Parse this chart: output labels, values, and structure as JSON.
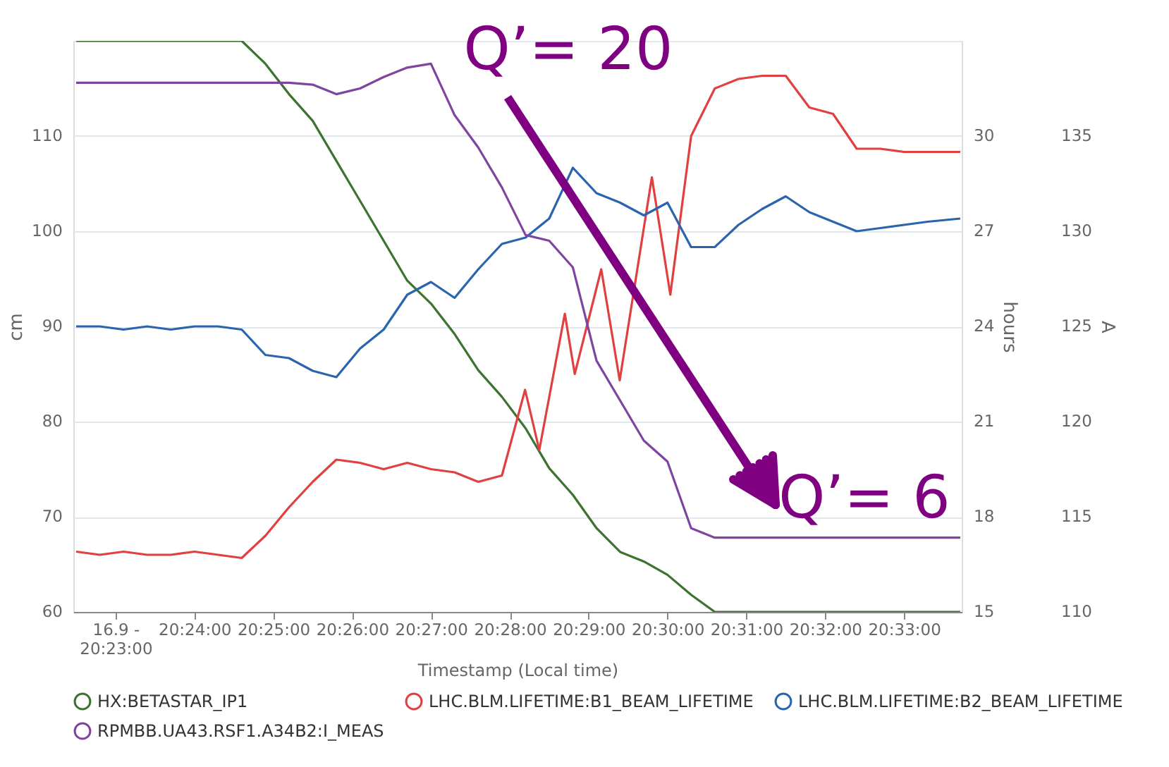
{
  "chart_data": {
    "type": "line",
    "xlabel": "Timestamp (Local time)",
    "ylabel": "cm",
    "y2label": "hours",
    "y3label": "A",
    "x": [
      20.375,
      20.38,
      20.385,
      20.39,
      20.395,
      20.4,
      20.405,
      20.41,
      20.415,
      20.42,
      20.425,
      20.43,
      20.435,
      20.44,
      20.445,
      20.45,
      20.455,
      20.46,
      20.465,
      20.47,
      20.475,
      20.48,
      20.485,
      20.49,
      20.495,
      20.5,
      20.505,
      20.51,
      20.515,
      20.52,
      20.525,
      20.53,
      20.535,
      20.54,
      20.545,
      20.55,
      20.555,
      20.5619
    ],
    "xlim": [
      20.3744,
      20.5622
    ],
    "xticks": [
      {
        "value": 20.383333,
        "label": "16.9 - 20:23:00"
      },
      {
        "value": 20.4,
        "label": "20:24:00"
      },
      {
        "value": 20.416667,
        "label": "20:25:00"
      },
      {
        "value": 20.433333,
        "label": "20:26:00"
      },
      {
        "value": 20.45,
        "label": "20:27:00"
      },
      {
        "value": 20.466667,
        "label": "20:28:00"
      },
      {
        "value": 20.483333,
        "label": "20:29:00"
      },
      {
        "value": 20.5,
        "label": "20:30:00"
      },
      {
        "value": 20.516667,
        "label": "20:31:00"
      },
      {
        "value": 20.533333,
        "label": "20:32:00"
      },
      {
        "value": 20.55,
        "label": "20:33:00"
      }
    ],
    "ylim": [
      60,
      120
    ],
    "yticks": [
      60,
      70,
      80,
      90,
      100,
      110,
      {
        "value": 120,
        "label": null
      }
    ],
    "y2lim": [
      15,
      33
    ],
    "y2ticks": [
      15,
      18,
      21,
      24,
      27,
      30
    ],
    "y3lim": [
      110,
      140
    ],
    "y3ticks": [
      110,
      115,
      120,
      125,
      130,
      135
    ],
    "grid": "y",
    "legend": "bottom",
    "annotations": [
      "Q’= 20",
      "Q’= 6"
    ],
    "series": [
      {
        "name": "HX:BETASTAR_IP1",
        "color": "#3d7330",
        "values": [
          120,
          120,
          120,
          120,
          120,
          120,
          120,
          120,
          117.6,
          114.4,
          111.6,
          107.4,
          103.2,
          99,
          94.8,
          92.4,
          89.2,
          85.4,
          82.6,
          79.3,
          75.1,
          72.3,
          68.8,
          66.3,
          65.3,
          63.9,
          61.8,
          60,
          60,
          60,
          60,
          60,
          60,
          60,
          60,
          60,
          60,
          60
        ]
      },
      {
        "name": "LHC.BLM.LIFETIME:B1_BEAM_LIFETIME",
        "color": "#e0403f",
        "axis": "y2",
        "x": [
          20.375,
          20.38,
          20.385,
          20.39,
          20.395,
          20.4,
          20.405,
          20.41,
          20.415,
          20.42,
          20.425,
          20.43,
          20.435,
          20.44,
          20.445,
          20.45,
          20.455,
          20.46,
          20.465,
          20.4699,
          20.4729,
          20.4783,
          20.4804,
          20.486,
          20.4899,
          20.4967,
          20.5006,
          20.505,
          20.51,
          20.515,
          20.52,
          20.525,
          20.53,
          20.535,
          20.54,
          20.545,
          20.55,
          20.555,
          20.5619
        ],
        "values": [
          16.9,
          16.8,
          16.9,
          16.8,
          16.8,
          16.9,
          16.8,
          16.7,
          17.4,
          18.3,
          19.1,
          19.8,
          19.7,
          19.5,
          19.7,
          19.5,
          19.4,
          19.1,
          19.3,
          22.0,
          20.1,
          24.4,
          22.5,
          25.8,
          22.3,
          28.7,
          25.0,
          30.0,
          31.5,
          31.8,
          31.9,
          31.9,
          30.9,
          30.7,
          29.6,
          29.6,
          29.5,
          29.5,
          29.5
        ]
      },
      {
        "name": "LHC.BLM.LIFETIME:B2_BEAM_LIFETIME",
        "color": "#2b64ae",
        "axis": "y2",
        "values": [
          24.0,
          24.0,
          23.9,
          24.0,
          23.9,
          24.0,
          24.0,
          23.9,
          23.1,
          23.0,
          22.6,
          22.4,
          23.3,
          23.9,
          25.0,
          25.4,
          24.9,
          25.8,
          26.6,
          26.8,
          27.4,
          29.0,
          28.2,
          27.9,
          27.5,
          27.9,
          26.5,
          26.5,
          27.2,
          27.7,
          28.1,
          27.6,
          27.3,
          27.0,
          27.1,
          27.2,
          27.3,
          27.4
        ]
      },
      {
        "name": "RPMBB.UA43.RSF1.A34B2:I_MEAS",
        "color": "#7f44a0",
        "axis": "y3",
        "values": [
          137.8,
          137.8,
          137.8,
          137.8,
          137.8,
          137.8,
          137.8,
          137.8,
          137.8,
          137.8,
          137.7,
          137.2,
          137.5,
          138.1,
          138.6,
          138.8,
          136.1,
          134.4,
          132.3,
          129.8,
          129.5,
          128.1,
          123.2,
          121.1,
          119.0,
          117.9,
          114.4,
          113.9,
          113.9,
          113.9,
          113.9,
          113.9,
          113.9,
          113.9,
          113.9,
          113.9,
          113.9,
          113.9
        ]
      }
    ]
  }
}
